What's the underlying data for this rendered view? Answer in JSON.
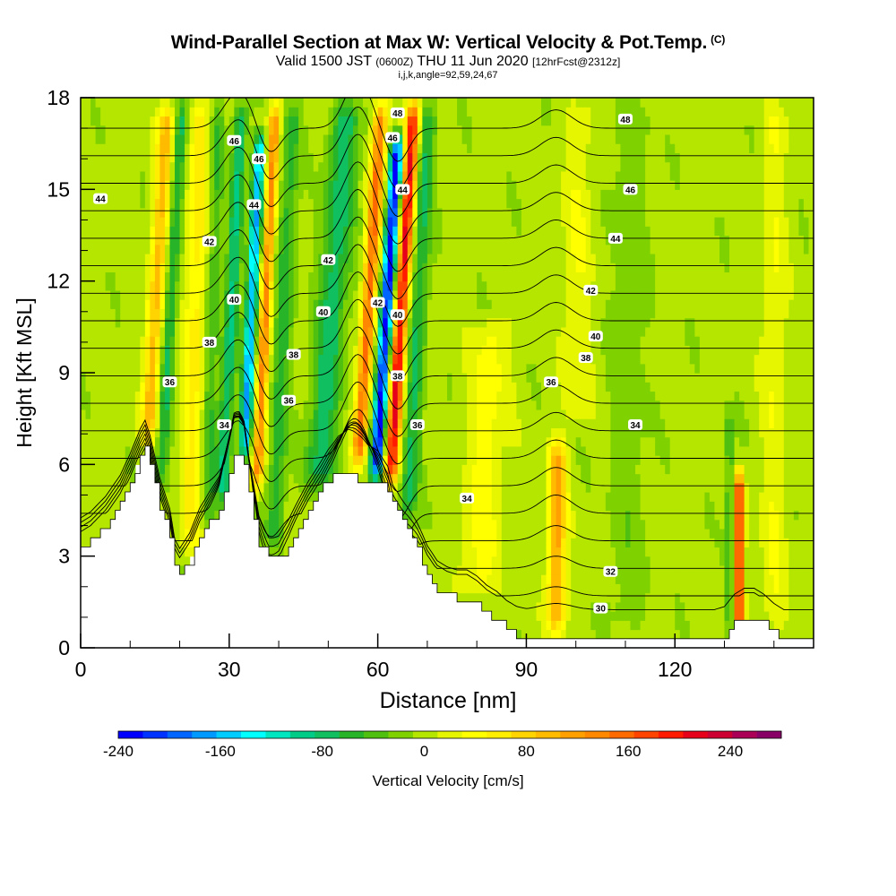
{
  "header": {
    "title": "Wind-Parallel Section at Max W: Vertical Velocity & Pot.Temp.",
    "title_mark": "(C)",
    "subtitle_pre": "Valid 1500 JST",
    "subtitle_utc": "(0600Z)",
    "subtitle_date": "THU 11 Jun 2020",
    "subtitle_fcst": "[12hrFcst@2312z]",
    "index_line": "i,j,k,angle=92,59,24,67"
  },
  "chart_data": {
    "type": "heatmap",
    "xlabel": "Distance [nm]",
    "ylabel": "Height [Kft MSL]",
    "xlim": [
      0,
      148
    ],
    "ylim": [
      0,
      18
    ],
    "x_ticks": [
      0,
      30,
      60,
      90,
      120
    ],
    "y_ticks": [
      0,
      3,
      6,
      9,
      12,
      15,
      18
    ],
    "grid": false,
    "colorbar": {
      "label": "Vertical Velocity [cm/s]",
      "range": [
        -240,
        280
      ],
      "step": 20,
      "tick_labels": [
        -240,
        -160,
        -80,
        0,
        80,
        160,
        240
      ],
      "colors": [
        "#0000ff",
        "#0033ff",
        "#0066ff",
        "#0099ff",
        "#00ccff",
        "#00ffff",
        "#00e6c0",
        "#00cc88",
        "#10c060",
        "#28b428",
        "#50c010",
        "#7fd200",
        "#b4e600",
        "#e6f500",
        "#ffff00",
        "#ffee00",
        "#ffd400",
        "#ffbb00",
        "#ffa000",
        "#ff8800",
        "#ff6a00",
        "#ff4400",
        "#ff1a00",
        "#e6001a",
        "#cc0033",
        "#aa0055",
        "#880066"
      ]
    },
    "terrain_kft": {
      "x": [
        0,
        2,
        5,
        8,
        10,
        12,
        13,
        14,
        16,
        18,
        19,
        20,
        22,
        24,
        26,
        28,
        30,
        31,
        32,
        33,
        34,
        36,
        38,
        40,
        42,
        44,
        46,
        48,
        50,
        52,
        54,
        56,
        58,
        60,
        62,
        63,
        64,
        66,
        68,
        70,
        72,
        74,
        76,
        78,
        80,
        82,
        84,
        86,
        88,
        90,
        92,
        96,
        100,
        104,
        108,
        112,
        116,
        120,
        124,
        128,
        130,
        132,
        134,
        136,
        138,
        140,
        142,
        144,
        146,
        148
      ],
      "h": [
        3.3,
        3.5,
        4.0,
        4.7,
        5.4,
        6.2,
        6.5,
        6.0,
        4.6,
        3.6,
        2.6,
        2.3,
        2.8,
        3.6,
        4.1,
        4.5,
        5.6,
        6.2,
        6.2,
        6.0,
        5.0,
        3.4,
        2.9,
        2.9,
        3.3,
        3.9,
        4.5,
        5.0,
        5.5,
        5.8,
        5.8,
        5.5,
        5.3,
        5.4,
        5.2,
        4.7,
        4.5,
        3.9,
        3.2,
        2.4,
        1.9,
        1.7,
        1.6,
        1.6,
        1.4,
        1.1,
        0.9,
        0.6,
        0.4,
        0.3,
        0.3,
        0.3,
        0.3,
        0.3,
        0.3,
        0.3,
        0.3,
        0.3,
        0.3,
        0.3,
        0.4,
        0.8,
        1.0,
        1.0,
        0.8,
        0.5,
        0.3,
        0.3,
        0.3,
        0.3
      ]
    },
    "velocity_features": [
      {
        "x": 13.5,
        "h_bottom": 6.5,
        "h_top": 18,
        "value": 100,
        "width": 1.6,
        "tilt": 0.35
      },
      {
        "x": 16.0,
        "h_bottom": 5.0,
        "h_top": 18,
        "value": -70,
        "width": 1.3,
        "tilt": 0.35
      },
      {
        "x": 22.0,
        "h_bottom": 2.8,
        "h_top": 18,
        "value": 60,
        "width": 2.2,
        "tilt": 0.15
      },
      {
        "x": 25.5,
        "h_bottom": 3.6,
        "h_top": 18,
        "value": -50,
        "width": 1.5,
        "tilt": 0.15
      },
      {
        "x": 28.5,
        "h_bottom": 4.5,
        "h_top": 18,
        "value": -90,
        "width": 1.4,
        "tilt": 0.3
      },
      {
        "x": 33.0,
        "h_bottom": 6.0,
        "h_top": 17,
        "value": -170,
        "width": 1.2,
        "tilt": 0.3
      },
      {
        "x": 35.5,
        "h_bottom": 5.0,
        "h_top": 18,
        "value": 140,
        "width": 1.2,
        "tilt": 0.3
      },
      {
        "x": 39.0,
        "h_bottom": 3.0,
        "h_top": 18,
        "value": -60,
        "width": 1.8,
        "tilt": 0.25
      },
      {
        "x": 48.0,
        "h_bottom": 5.0,
        "h_top": 18,
        "value": -80,
        "width": 3.0,
        "tilt": 0.45
      },
      {
        "x": 56.0,
        "h_bottom": 5.8,
        "h_top": 18,
        "value": 160,
        "width": 1.4,
        "tilt": 0.4
      },
      {
        "x": 59.5,
        "h_bottom": 5.3,
        "h_top": 17,
        "value": -240,
        "width": 1.3,
        "tilt": 0.4
      },
      {
        "x": 62.5,
        "h_bottom": 5.2,
        "h_top": 18,
        "value": 220,
        "width": 1.4,
        "tilt": 0.38
      },
      {
        "x": 66.0,
        "h_bottom": 3.9,
        "h_top": 18,
        "value": -70,
        "width": 1.8,
        "tilt": 0.3
      },
      {
        "x": 80.0,
        "h_bottom": 1.4,
        "h_top": 11,
        "value": 40,
        "width": 4.0,
        "tilt": 0.35
      },
      {
        "x": 96.0,
        "h_bottom": 0.3,
        "h_top": 7,
        "value": 120,
        "width": 1.8,
        "tilt": 0.05
      },
      {
        "x": 100.0,
        "h_bottom": 7,
        "h_top": 18,
        "value": 30,
        "width": 3.0,
        "tilt": 0.05
      },
      {
        "x": 110.0,
        "h_bottom": 0.3,
        "h_top": 18,
        "value": -20,
        "width": 4.0,
        "tilt": 0.05
      },
      {
        "x": 133.0,
        "h_bottom": 0.3,
        "h_top": 6,
        "value": 220,
        "width": 0.9,
        "tilt": 0.0
      },
      {
        "x": 131.0,
        "h_bottom": 0.3,
        "h_top": 8,
        "value": -50,
        "width": 0.9,
        "tilt": 0.0
      },
      {
        "x": 140.0,
        "h_bottom": 0.3,
        "h_top": 18,
        "value": 30,
        "width": 2.5,
        "tilt": 0.0
      }
    ],
    "theta_levels": [
      30,
      31,
      32,
      33,
      34,
      35,
      36,
      37,
      38,
      39,
      40,
      41,
      42,
      43,
      44,
      45,
      46,
      47,
      48
    ],
    "theta_contour_labels": [
      {
        "text": "44",
        "x": 4,
        "y": 14.7
      },
      {
        "text": "46",
        "x": 31,
        "y": 16.6
      },
      {
        "text": "46",
        "x": 36,
        "y": 16.0
      },
      {
        "text": "44",
        "x": 35,
        "y": 14.5
      },
      {
        "text": "42",
        "x": 26,
        "y": 13.3
      },
      {
        "text": "40",
        "x": 31,
        "y": 11.4
      },
      {
        "text": "38",
        "x": 26,
        "y": 10.0
      },
      {
        "text": "36",
        "x": 18,
        "y": 8.7
      },
      {
        "text": "34",
        "x": 29,
        "y": 7.3
      },
      {
        "text": "38",
        "x": 43,
        "y": 9.6
      },
      {
        "text": "36",
        "x": 42,
        "y": 8.1
      },
      {
        "text": "42",
        "x": 50,
        "y": 12.7
      },
      {
        "text": "40",
        "x": 49,
        "y": 11.0
      },
      {
        "text": "48",
        "x": 64,
        "y": 17.5
      },
      {
        "text": "46",
        "x": 63,
        "y": 16.7
      },
      {
        "text": "44",
        "x": 65,
        "y": 15.0
      },
      {
        "text": "42",
        "x": 60,
        "y": 11.3
      },
      {
        "text": "40",
        "x": 64,
        "y": 10.9
      },
      {
        "text": "38",
        "x": 64,
        "y": 8.9
      },
      {
        "text": "36",
        "x": 68,
        "y": 7.3
      },
      {
        "text": "34",
        "x": 78,
        "y": 4.9
      },
      {
        "text": "48",
        "x": 110,
        "y": 17.3
      },
      {
        "text": "46",
        "x": 111,
        "y": 15.0
      },
      {
        "text": "44",
        "x": 108,
        "y": 13.4
      },
      {
        "text": "42",
        "x": 103,
        "y": 11.7
      },
      {
        "text": "40",
        "x": 104,
        "y": 10.2
      },
      {
        "text": "38",
        "x": 102,
        "y": 9.5
      },
      {
        "text": "36",
        "x": 95,
        "y": 8.7
      },
      {
        "text": "34",
        "x": 112,
        "y": 7.3
      },
      {
        "text": "32",
        "x": 107,
        "y": 2.5
      },
      {
        "text": "30",
        "x": 105,
        "y": 1.3
      }
    ]
  }
}
